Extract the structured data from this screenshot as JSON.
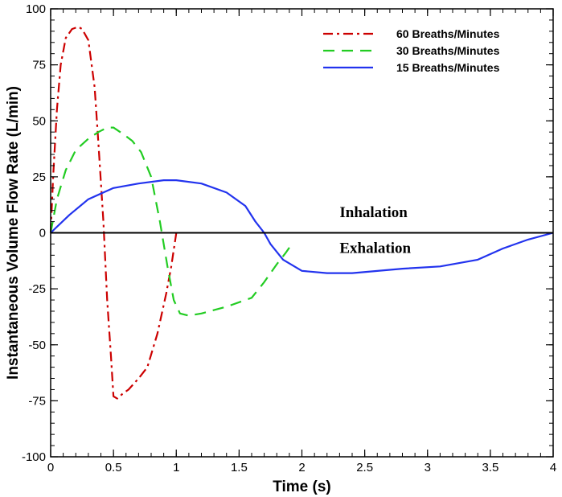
{
  "chart_data": {
    "type": "line",
    "xlabel": "Time (s)",
    "ylabel": "Instantaneous Volume Flow Rate (L/min)",
    "xlim": [
      0,
      4
    ],
    "ylim": [
      -100,
      100
    ],
    "xticks": [
      0,
      0.5,
      1,
      1.5,
      2,
      2.5,
      3,
      3.5,
      4
    ],
    "xtick_labels": [
      "0",
      "0.5",
      "1",
      "1.5",
      "2",
      "2.5",
      "3",
      "3.5",
      "4"
    ],
    "yticks": [
      -100,
      -75,
      -50,
      -25,
      0,
      25,
      50,
      75,
      100
    ],
    "ytick_labels": [
      "-100",
      "-75",
      "-50",
      "-25",
      "0",
      "25",
      "50",
      "75",
      "100"
    ],
    "grid": false,
    "legend_position": "top-right",
    "annotations": [
      {
        "text": "Inhalation",
        "x": 2.3,
        "y": 7
      },
      {
        "text": "Exhalation",
        "x": 2.3,
        "y": -9
      }
    ],
    "series": [
      {
        "name": "60 Breaths/Minutes",
        "color": "#cc0000",
        "dash": "dashdot",
        "x": [
          0,
          0.02,
          0.05,
          0.08,
          0.12,
          0.17,
          0.22,
          0.25,
          0.3,
          0.35,
          0.38,
          0.42,
          0.45,
          0.48,
          0.5,
          0.53,
          0.57,
          0.62,
          0.7,
          0.77,
          0.85,
          0.92,
          0.96,
          1.0
        ],
        "y": [
          0,
          25,
          55,
          75,
          87,
          91,
          92,
          91,
          86,
          65,
          40,
          5,
          -30,
          -55,
          -73,
          -74,
          -72,
          -70,
          -65,
          -60,
          -45,
          -27,
          -15,
          0
        ]
      },
      {
        "name": "30 Breaths/Minutes",
        "color": "#22cc22",
        "dash": "dash",
        "x": [
          0,
          0.05,
          0.12,
          0.2,
          0.3,
          0.38,
          0.45,
          0.5,
          0.58,
          0.65,
          0.72,
          0.8,
          0.87,
          0.93,
          0.98,
          1.03,
          1.1,
          1.2,
          1.4,
          1.6,
          1.7,
          1.8,
          1.87,
          1.92
        ],
        "y": [
          0,
          15,
          28,
          37,
          42,
          45,
          47,
          47,
          44,
          41,
          36,
          25,
          5,
          -15,
          -30,
          -36,
          -37,
          -36,
          -33,
          -29,
          -22,
          -14,
          -9,
          -5
        ]
      },
      {
        "name": "15 Breaths/Minutes",
        "color": "#2233ee",
        "dash": "solid",
        "x": [
          0,
          0.15,
          0.3,
          0.5,
          0.7,
          0.9,
          1.0,
          1.2,
          1.4,
          1.55,
          1.63,
          1.7,
          1.75,
          1.85,
          2.0,
          2.2,
          2.4,
          2.8,
          3.1,
          3.4,
          3.6,
          3.8,
          4.0
        ],
        "y": [
          0,
          8,
          15,
          20,
          22,
          23.5,
          23.5,
          22,
          18,
          12,
          5,
          0,
          -5,
          -12,
          -17,
          -18,
          -18,
          -16,
          -15,
          -12,
          -7,
          -3,
          0
        ]
      }
    ]
  }
}
